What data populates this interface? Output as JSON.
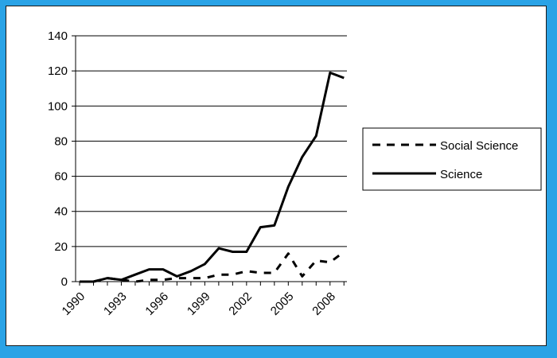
{
  "chart_data": {
    "type": "line",
    "title": "",
    "xlabel": "",
    "ylabel": "",
    "x": [
      1990,
      1991,
      1992,
      1993,
      1994,
      1995,
      1996,
      1997,
      1998,
      1999,
      2000,
      2001,
      2002,
      2003,
      2004,
      2005,
      2006,
      2007,
      2008,
      2009
    ],
    "x_tick_labels": [
      "1990",
      "1993",
      "1996",
      "1999",
      "2002",
      "2005",
      "2008"
    ],
    "y_ticks": [
      "0",
      "20",
      "40",
      "60",
      "80",
      "100",
      "120",
      "140"
    ],
    "ylim": [
      0,
      140
    ],
    "grid": "horizontal",
    "legend_position": "right",
    "series": [
      {
        "name": "Social Science",
        "style": "dashed",
        "color": "#000000",
        "values": [
          0,
          0,
          2,
          1,
          0,
          1,
          1,
          2,
          2,
          2,
          4,
          4,
          6,
          5,
          5,
          16,
          3,
          12,
          11,
          17
        ]
      },
      {
        "name": "Science",
        "style": "solid",
        "color": "#000000",
        "values": [
          0,
          0,
          2,
          1,
          4,
          7,
          7,
          3,
          6,
          10,
          19,
          17,
          17,
          31,
          32,
          54,
          71,
          83,
          119,
          116
        ]
      }
    ]
  }
}
